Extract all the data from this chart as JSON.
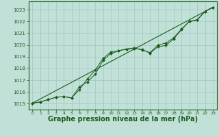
{
  "background_color": "#c0e0d8",
  "grid_color": "#a0c8c0",
  "line_color": "#1a5c1a",
  "marker_color": "#1a5c1a",
  "xlabel": "Graphe pression niveau de la mer (hPa)",
  "xlabel_fontsize": 7,
  "xlim": [
    -0.5,
    23.5
  ],
  "ylim": [
    1014.5,
    1023.7
  ],
  "yticks": [
    1015,
    1016,
    1017,
    1018,
    1019,
    1020,
    1021,
    1022,
    1023
  ],
  "xticks": [
    0,
    1,
    2,
    3,
    4,
    5,
    6,
    7,
    8,
    9,
    10,
    11,
    12,
    13,
    14,
    15,
    16,
    17,
    18,
    19,
    20,
    21,
    22,
    23
  ],
  "series1_x": [
    0,
    1,
    2,
    3,
    4,
    5,
    6,
    7,
    8,
    9,
    10,
    11,
    12,
    13,
    14,
    15,
    16,
    17,
    18,
    19,
    20,
    21,
    22,
    23
  ],
  "series1_y": [
    1015.05,
    1015.15,
    1015.35,
    1015.55,
    1015.6,
    1015.5,
    1016.2,
    1017.1,
    1017.85,
    1018.85,
    1019.4,
    1019.5,
    1019.65,
    1019.7,
    1019.6,
    1019.3,
    1019.85,
    1019.95,
    1020.5,
    1021.3,
    1022.0,
    1022.1,
    1022.85,
    1023.2
  ],
  "series2_x": [
    0,
    1,
    2,
    3,
    4,
    5,
    6,
    7,
    8,
    9,
    10,
    11,
    12,
    13,
    14,
    15,
    16,
    17,
    18,
    19,
    20,
    21,
    22,
    23
  ],
  "series2_y": [
    1015.05,
    1015.15,
    1015.35,
    1015.55,
    1015.6,
    1015.5,
    1016.45,
    1016.85,
    1017.5,
    1018.7,
    1019.25,
    1019.5,
    1019.65,
    1019.75,
    1019.55,
    1019.35,
    1020.0,
    1020.15,
    1020.6,
    1021.35,
    1022.0,
    1022.15,
    1022.85,
    1023.2
  ],
  "series3_x": [
    0,
    23
  ],
  "series3_y": [
    1015.05,
    1023.2
  ]
}
